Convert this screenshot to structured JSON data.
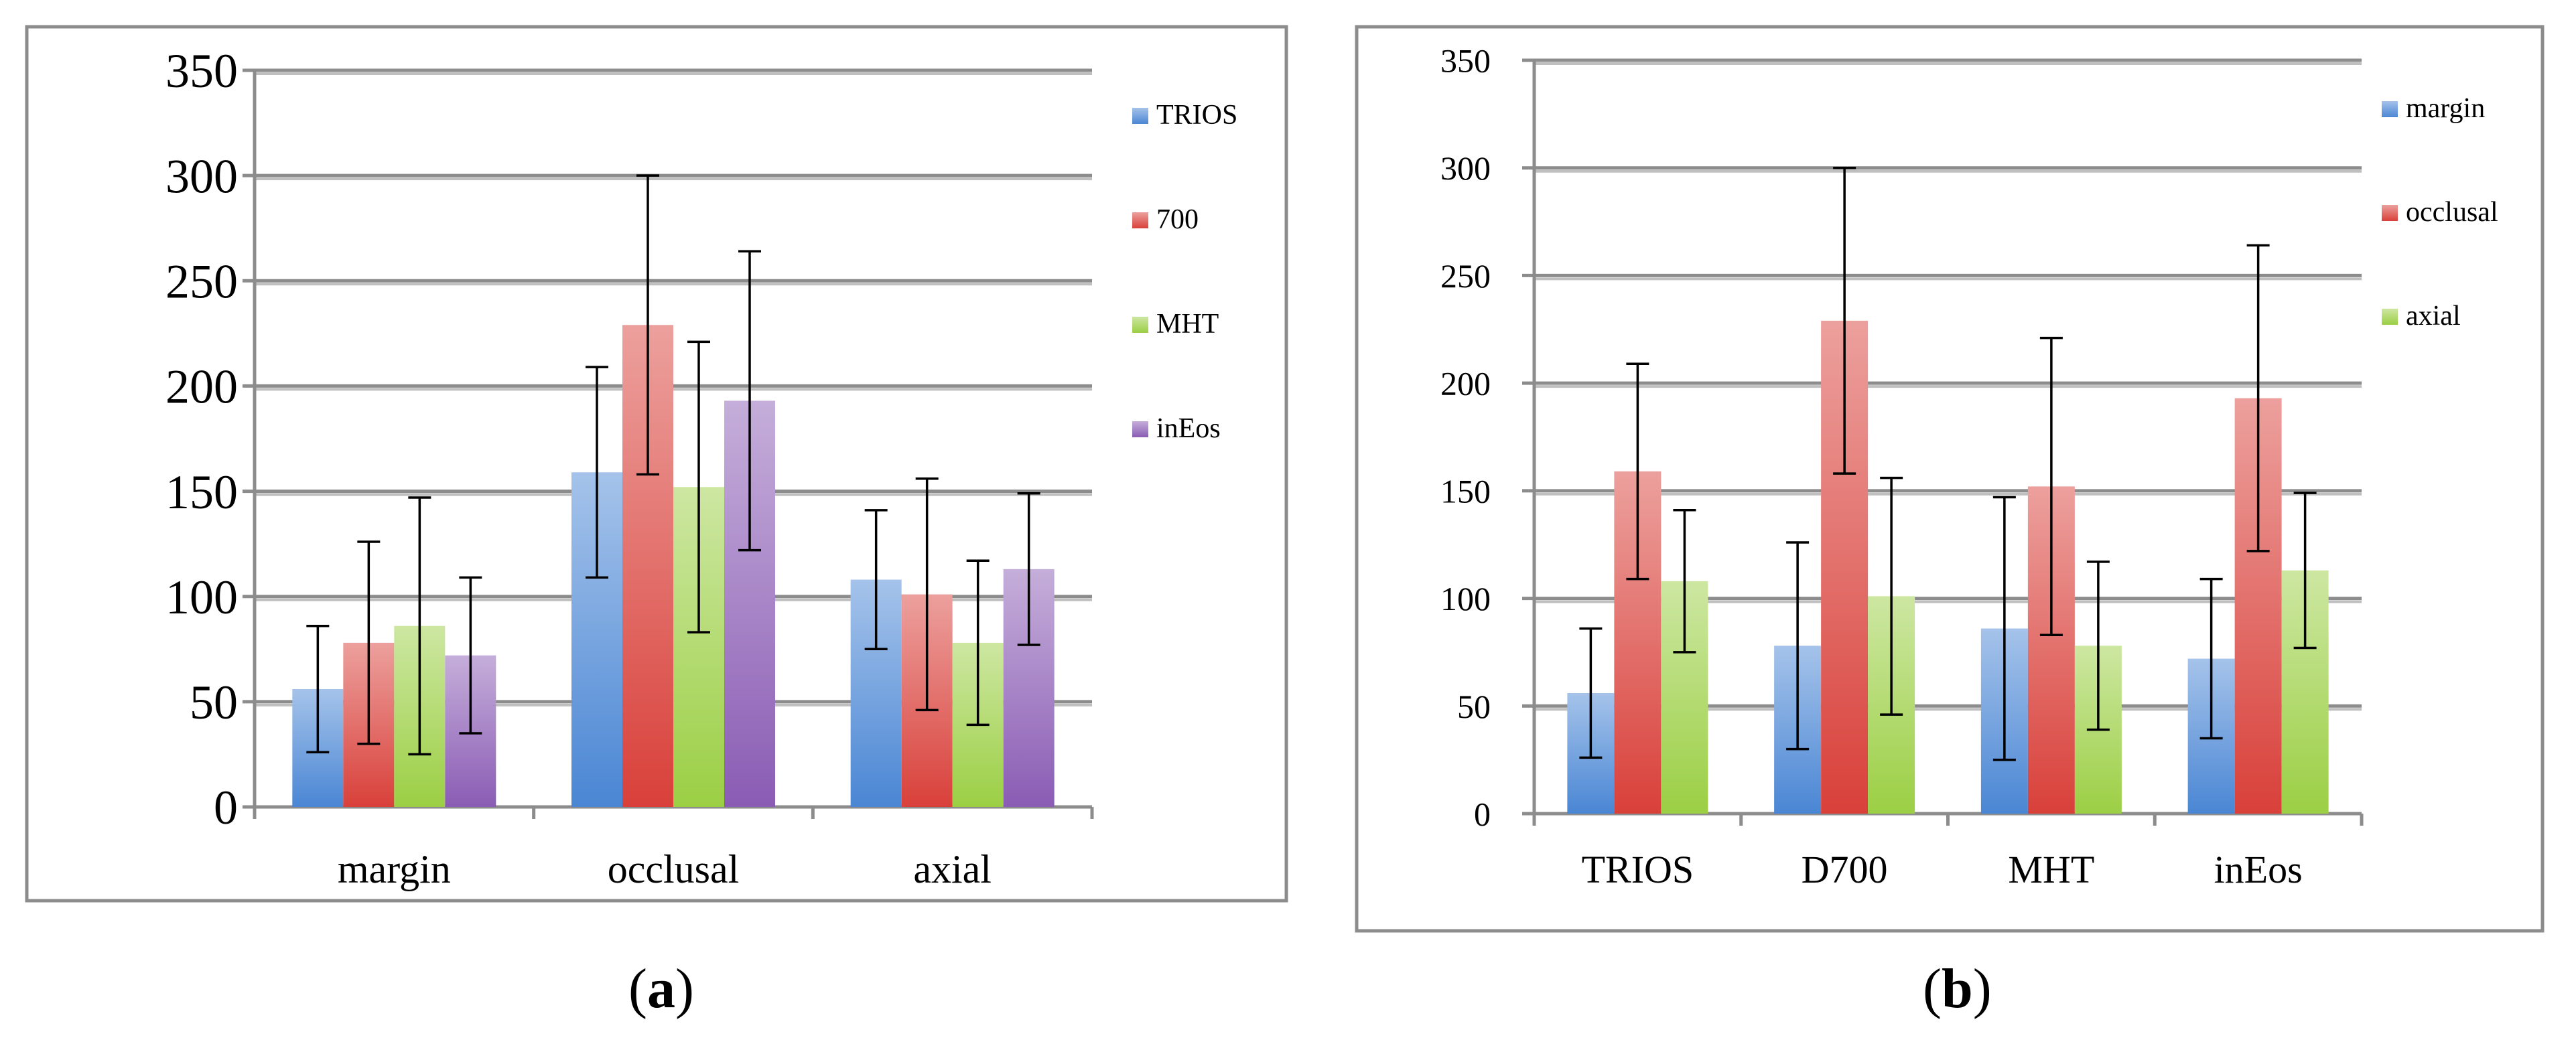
{
  "chart_data": [
    {
      "type": "bar",
      "panel_label": "a",
      "categories": [
        "margin",
        "occlusal",
        "axial"
      ],
      "series": [
        {
          "name": "TRIOS",
          "color": "#4a86d4",
          "values": [
            56,
            159,
            108
          ],
          "errors": [
            30,
            50,
            33
          ]
        },
        {
          "name": "700",
          "color": "#d9403a",
          "values": [
            78,
            229,
            101
          ],
          "errors": [
            48,
            71,
            55
          ]
        },
        {
          "name": "MHT",
          "color": "#9bcf44",
          "values": [
            86,
            152,
            78
          ],
          "errors": [
            61,
            69,
            39
          ]
        },
        {
          "name": "inEos",
          "color": "#8a5cb4",
          "values": [
            72,
            193,
            113
          ],
          "errors": [
            37,
            71,
            36
          ]
        }
      ],
      "ylim": [
        0,
        350
      ],
      "yticks": [
        0,
        50,
        100,
        150,
        200,
        250,
        300,
        350
      ],
      "grid": true,
      "legend": "right"
    },
    {
      "type": "bar",
      "panel_label": "b",
      "categories": [
        "TRIOS",
        "D700",
        "MHT",
        "inEos"
      ],
      "series": [
        {
          "name": "margin",
          "color": "#4a86d4",
          "values": [
            56,
            78,
            86,
            72
          ],
          "errors": [
            30,
            48,
            61,
            37
          ]
        },
        {
          "name": "occlusal",
          "color": "#d9403a",
          "values": [
            159,
            229,
            152,
            193
          ],
          "errors": [
            50,
            71,
            69,
            71
          ]
        },
        {
          "name": "axial",
          "color": "#9bcf44",
          "values": [
            108,
            101,
            78,
            113
          ],
          "errors": [
            33,
            55,
            39,
            36
          ]
        }
      ],
      "ylim": [
        0,
        350
      ],
      "yticks": [
        0,
        50,
        100,
        150,
        200,
        250,
        300,
        350
      ],
      "grid": true,
      "legend": "right"
    }
  ]
}
